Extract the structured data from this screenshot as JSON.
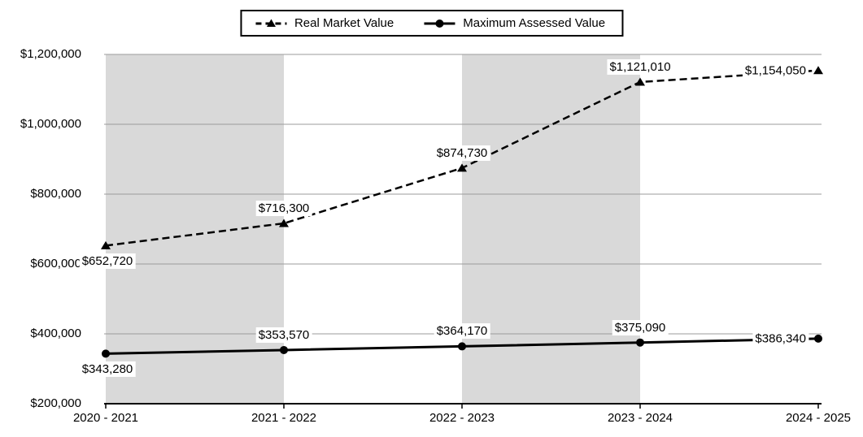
{
  "legend": {
    "items": [
      {
        "label": "Real Market Value",
        "marker": "dashed-line-triangle"
      },
      {
        "label": "Maximum Assessed Value",
        "marker": "solid-line-circle"
      }
    ]
  },
  "chart_data": {
    "type": "line",
    "title": "",
    "categories": [
      "2020 - 2021",
      "2021 - 2022",
      "2022 - 2023",
      "2023 - 2024",
      "2024 - 2025"
    ],
    "series": [
      {
        "name": "Real Market Value",
        "line_style": "dashed",
        "marker": "triangle",
        "color": "#000000",
        "values": [
          652720,
          716300,
          874730,
          1121010,
          1154050
        ],
        "data_labels": [
          "$652,720",
          "$716,300",
          "$874,730",
          "$1,121,010",
          "$1,154,050"
        ],
        "label_placement": [
          "below",
          "above",
          "above",
          "above",
          "left"
        ]
      },
      {
        "name": "Maximum Assessed Value",
        "line_style": "solid",
        "marker": "circle",
        "color": "#000000",
        "values": [
          343280,
          353570,
          364170,
          375090,
          386340
        ],
        "data_labels": [
          "$343,280",
          "$353,570",
          "$364,170",
          "$375,090",
          "$386,340"
        ],
        "label_placement": [
          "below",
          "above",
          "above",
          "above",
          "left"
        ]
      }
    ],
    "y_axis": {
      "min": 200000,
      "max": 1200000,
      "step": 200000,
      "tick_labels": [
        "$200,000",
        "$400,000",
        "$600,000",
        "$800,000",
        "$1,000,000",
        "$1,200,000"
      ]
    },
    "x_axis": {
      "tick_labels": [
        "2020 - 2021",
        "2021 - 2022",
        "2022 - 2023",
        "2023 - 2024",
        "2024 - 2025"
      ]
    },
    "plot_bands": {
      "shaded_category_spans": [
        [
          0,
          1
        ],
        [
          2,
          3
        ]
      ],
      "color": "#d9d9d9"
    },
    "grid": true,
    "legend_position": "top",
    "colors": {
      "gridline": "#9b9b9b",
      "axis": "#000000",
      "series": "#000000",
      "text": "#000000",
      "background": "#ffffff"
    }
  }
}
